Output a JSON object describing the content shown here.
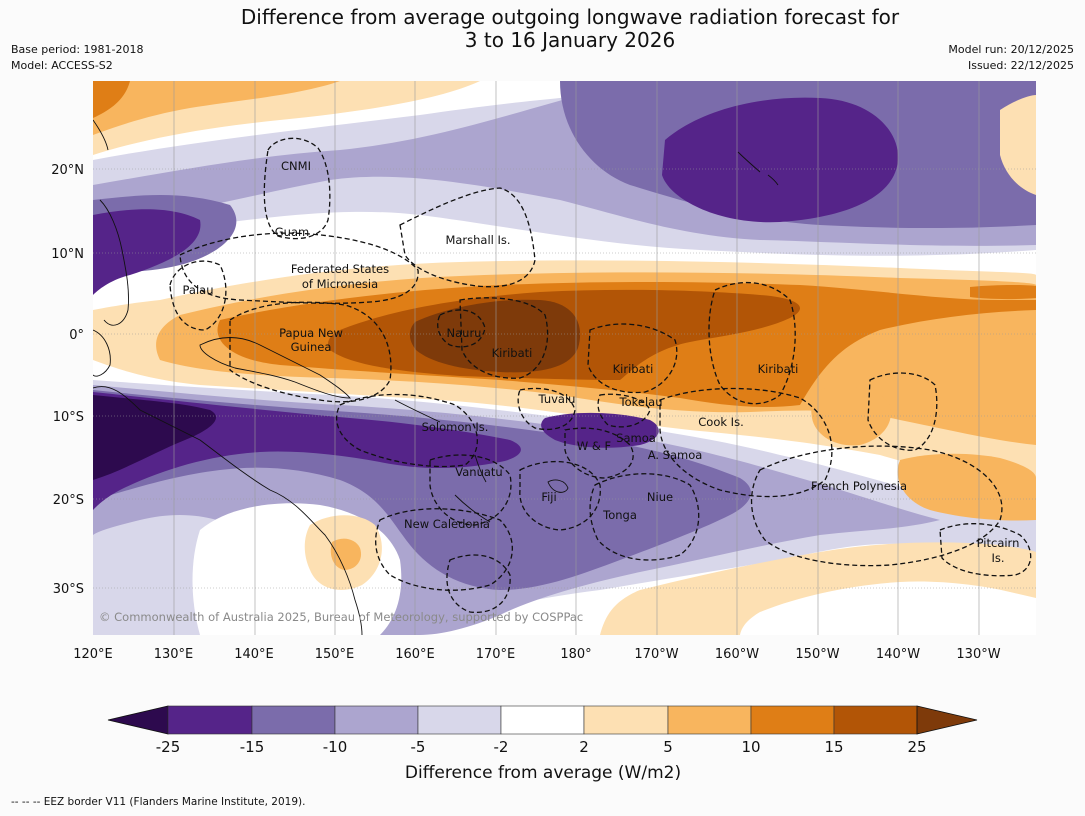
{
  "header": {
    "title_line1": "Difference from average outgoing longwave radiation forecast for",
    "title_line2": "3 to 16 January 2026",
    "base_period": "Base period: 1981-2018",
    "model": "Model: ACCESS-S2",
    "model_run": "Model run: 20/12/2025",
    "issued": "Issued: 22/12/2025"
  },
  "map": {
    "lon_ticks": [
      "120°E",
      "130°E",
      "140°E",
      "150°E",
      "160°E",
      "170°E",
      "180°",
      "170°W",
      "160°W",
      "150°W",
      "140°W",
      "130°W"
    ],
    "lat_ticks": [
      "20°N",
      "10°N",
      "0°",
      "10°S",
      "20°S",
      "30°S"
    ],
    "regions": {
      "cnmi": "CNMI",
      "guam": "Guam",
      "marshall": "Marshall Is.",
      "fsm_1": "Federated States",
      "fsm_2": "of Micronesia",
      "palau": "Palau",
      "png_1": "Papua New",
      "png_2": "Guinea",
      "nauru": "Nauru",
      "kiribati_w": "Kiribati",
      "kiribati_c": "Kiribati",
      "kiribati_e": "Kiribati",
      "tuvalu": "Tuvalu",
      "tokelau": "Tokelau",
      "solomon": "Solomon Is.",
      "cook": "Cook Is.",
      "samoa": "Samoa",
      "wf": "W & F",
      "asamoa": "A. Samoa",
      "vanuatu": "Vanuatu",
      "fiji": "Fiji",
      "niue": "Niue",
      "tonga": "Tonga",
      "fp": "French Polynesia",
      "newcal": "New Caledonia",
      "pitcairn_1": "Pitcairn",
      "pitcairn_2": "Is."
    },
    "copyright": "© Commonwealth of Australia 2025, Bureau of Meteorology, supported by COSPPac"
  },
  "colorbar": {
    "ticks": [
      "-25",
      "-15",
      "-10",
      "-5",
      "-2",
      "2",
      "5",
      "10",
      "15",
      "25"
    ],
    "label": "Difference from average (W/m2)",
    "colors": [
      "#2d0a4e",
      "#552489",
      "#7b6cab",
      "#aca5cf",
      "#d8d7ea",
      "#ffffff",
      "#fde0b3",
      "#f8b55e",
      "#df7e16",
      "#b25506",
      "#7e3a0a"
    ]
  },
  "footnote": "--  --  -- EEZ border V11 (Flanders Marine Institute, 2019)."
}
